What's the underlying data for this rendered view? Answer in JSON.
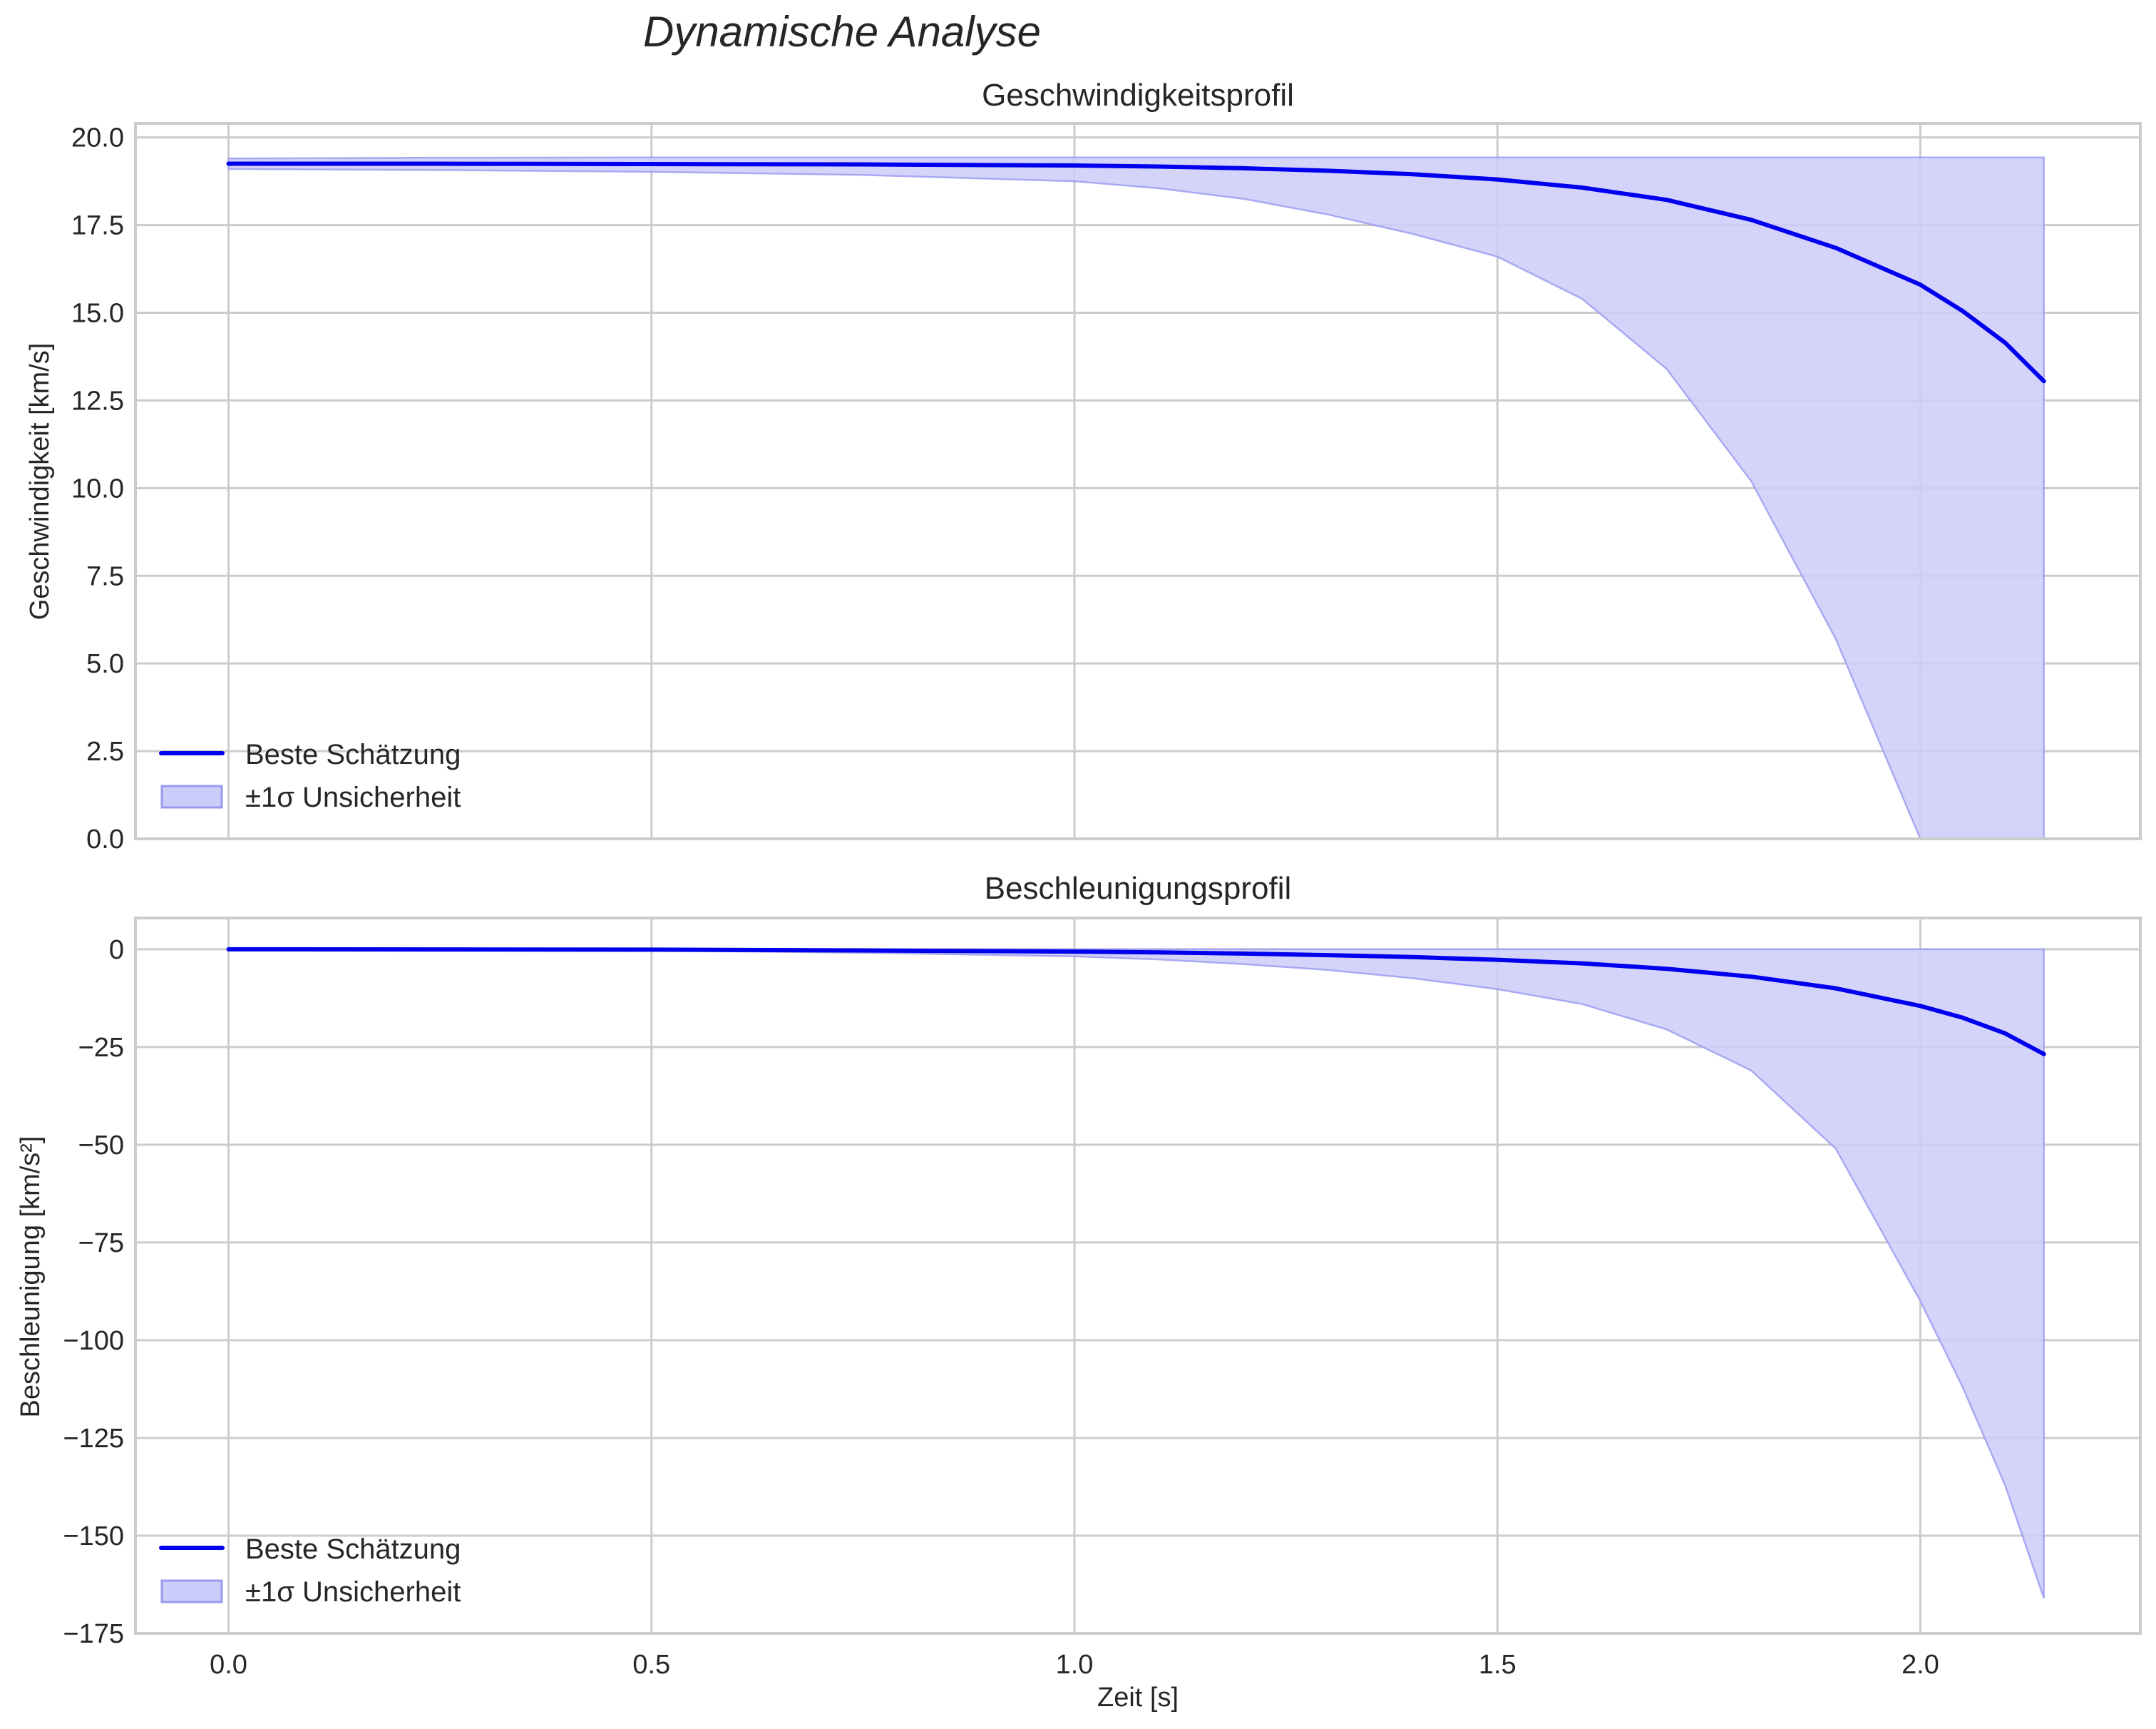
{
  "figure": {
    "suptitle": "Dynamische Analyse",
    "xlabel": "Zeit [s]"
  },
  "colors": {
    "line": "#0000ee",
    "band_fill": "#ccccfa",
    "band_edge": "#9999f0",
    "grid": "#cccccc",
    "text": "#262626"
  },
  "legend": {
    "line_label": "Beste Schätzung",
    "band_label": "±1σ Unsicherheit"
  },
  "chart_data": [
    {
      "type": "line",
      "title": "Geschwindigkeitsprofil",
      "xlabel": "",
      "ylabel": "Geschwindigkeit [km/s]",
      "xlim": [
        -0.11,
        2.26
      ],
      "ylim": [
        0.0,
        20.4
      ],
      "xticks": [
        0.0,
        0.5,
        1.0,
        1.5,
        2.0
      ],
      "xtick_labels": [
        "0.0",
        "0.5",
        "1.0",
        "1.5",
        "2.0"
      ],
      "yticks": [
        0.0,
        2.5,
        5.0,
        7.5,
        10.0,
        12.5,
        15.0,
        17.5,
        20.0
      ],
      "ytick_labels": [
        "0.0",
        "2.5",
        "5.0",
        "7.5",
        "10.0",
        "12.5",
        "15.0",
        "17.5",
        "20.0"
      ],
      "grid": true,
      "legend_position": "lower left",
      "x": [
        0.0,
        0.25,
        0.5,
        0.75,
        1.0,
        1.1,
        1.2,
        1.3,
        1.4,
        1.5,
        1.6,
        1.7,
        1.8,
        1.9,
        2.0,
        2.05,
        2.1,
        2.146
      ],
      "series": [
        {
          "name": "Beste Schätzung",
          "kind": "line",
          "values": [
            19.25,
            19.25,
            19.24,
            19.23,
            19.2,
            19.17,
            19.12,
            19.05,
            18.95,
            18.8,
            18.57,
            18.22,
            17.65,
            16.85,
            15.8,
            15.05,
            14.15,
            13.05
          ]
        },
        {
          "name": "±1σ Unsicherheit (unten)",
          "kind": "band_lower",
          "values": [
            19.1,
            19.07,
            19.02,
            18.93,
            18.75,
            18.55,
            18.25,
            17.8,
            17.25,
            16.6,
            15.4,
            13.4,
            10.2,
            5.7,
            -1.0,
            -5.0,
            -9.5,
            -15.0
          ]
        },
        {
          "name": "±1σ Unsicherheit (oben)",
          "kind": "band_upper",
          "values": [
            19.4,
            19.42,
            19.43,
            19.43,
            19.43,
            19.43,
            19.43,
            19.43,
            19.43,
            19.43,
            19.43,
            19.43,
            19.43,
            19.43,
            19.43,
            19.43,
            19.43,
            19.43
          ]
        }
      ]
    },
    {
      "type": "line",
      "title": "Beschleunigungsprofil",
      "xlabel": "Zeit [s]",
      "ylabel": "Beschleunigung [km/s²]",
      "xlim": [
        -0.11,
        2.26
      ],
      "ylim": [
        -175,
        8
      ],
      "xticks": [
        0.0,
        0.5,
        1.0,
        1.5,
        2.0
      ],
      "xtick_labels": [
        "0.0",
        "0.5",
        "1.0",
        "1.5",
        "2.0"
      ],
      "yticks": [
        0,
        -25,
        -50,
        -75,
        -100,
        -125,
        -150,
        -175
      ],
      "ytick_labels": [
        "0",
        "−25",
        "−50",
        "−75",
        "−100",
        "−125",
        "−150",
        "−175"
      ],
      "grid": true,
      "legend_position": "lower left",
      "x": [
        0.0,
        0.25,
        0.5,
        0.75,
        1.0,
        1.1,
        1.2,
        1.3,
        1.4,
        1.5,
        1.6,
        1.7,
        1.8,
        1.9,
        2.0,
        2.05,
        2.1,
        2.146
      ],
      "series": [
        {
          "name": "Beste Schätzung",
          "kind": "line",
          "values": [
            0.0,
            -0.05,
            -0.1,
            -0.3,
            -0.6,
            -0.8,
            -1.1,
            -1.5,
            -2.0,
            -2.7,
            -3.6,
            -5.0,
            -7.0,
            -10.0,
            -14.5,
            -17.5,
            -21.5,
            -26.8
          ]
        },
        {
          "name": "±1σ Unsicherheit (unten)",
          "kind": "band_lower",
          "values": [
            0.0,
            -0.1,
            -0.3,
            -0.9,
            -1.8,
            -2.6,
            -3.8,
            -5.3,
            -7.4,
            -10.2,
            -14.0,
            -20.5,
            -31.0,
            -51.0,
            -90.0,
            -112.0,
            -137.0,
            -166.0
          ]
        },
        {
          "name": "±1σ Unsicherheit (oben)",
          "kind": "band_upper",
          "values": [
            0.0,
            0.0,
            0.0,
            0.0,
            0.0,
            0.0,
            0.0,
            0.0,
            0.0,
            0.0,
            0.0,
            0.0,
            0.0,
            0.0,
            0.0,
            0.0,
            0.0,
            0.0
          ]
        }
      ]
    }
  ]
}
